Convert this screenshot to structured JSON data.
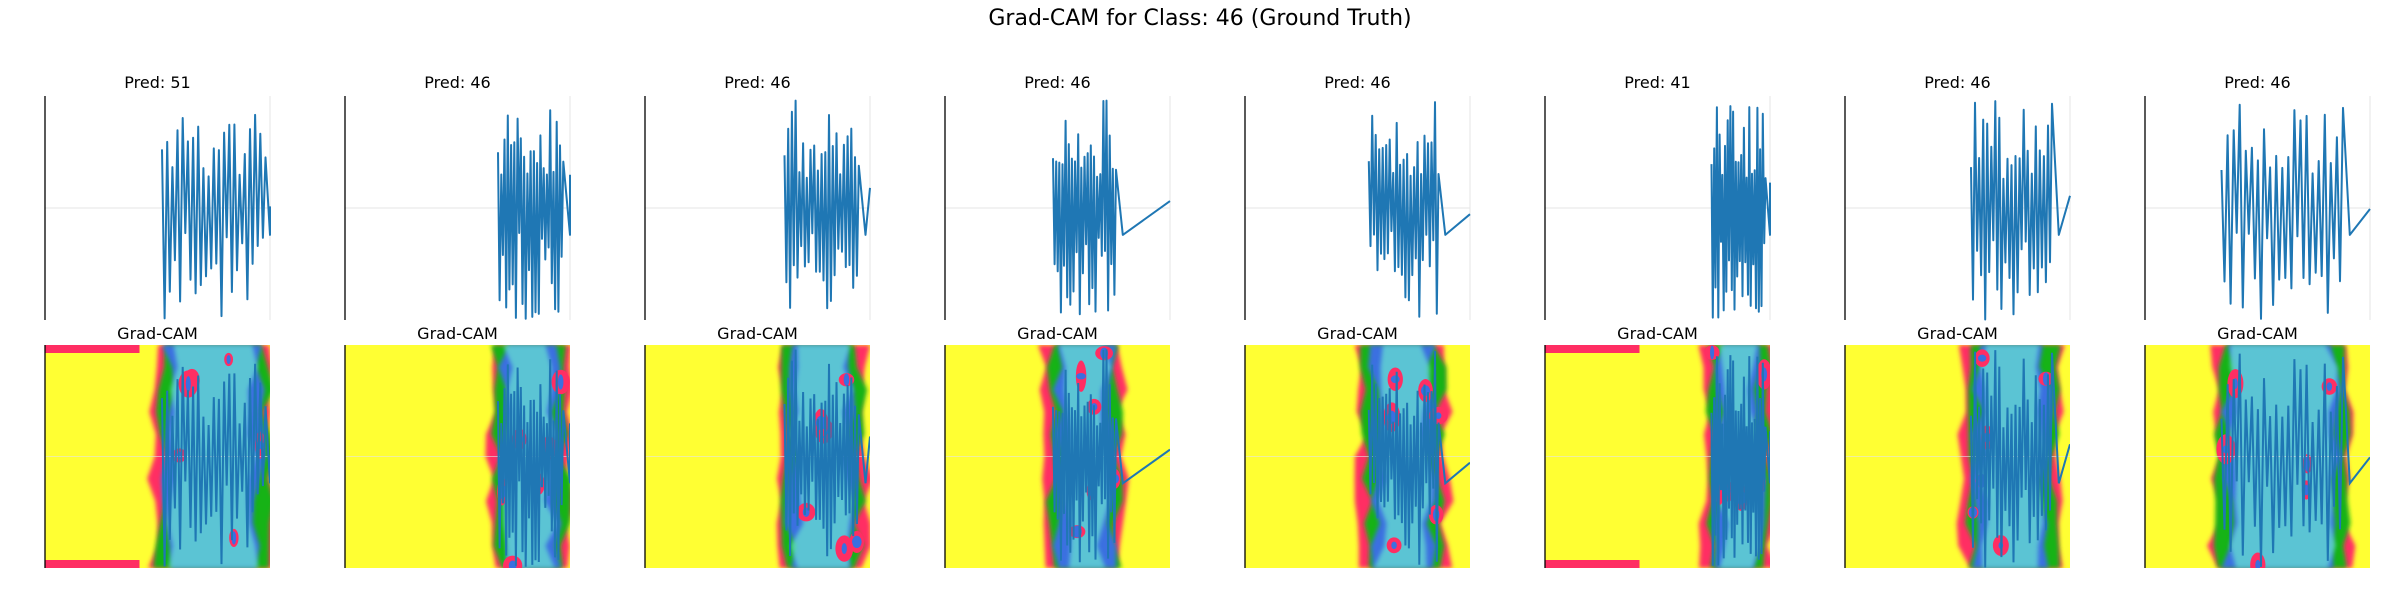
{
  "suptitle": "Grad-CAM for Class: 46 (Ground Truth)",
  "colors": {
    "line": "#1f77b4",
    "cam_low": "#ffff33",
    "cam_edge": "#ff2e63",
    "cam_mid": "#19b319",
    "cam_high": "#3a6fe0",
    "cam_core": "#66e0d0",
    "axis": "#000000",
    "grid": "#e6e6e6"
  },
  "heatmap_note_colormap": "prism",
  "chart_data": [
    {
      "type": "line",
      "title": "Pred: 51",
      "cam_title": "Grad-CAM",
      "grid": true,
      "axes_visible": false,
      "band": [
        0.52,
        0.98
      ]
    },
    {
      "type": "line",
      "title": "Pred: 46",
      "cam_title": "Grad-CAM",
      "grid": true,
      "axes_visible": false,
      "band": [
        0.68,
        0.97
      ]
    },
    {
      "type": "line",
      "title": "Pred: 46",
      "cam_title": "Grad-CAM",
      "grid": true,
      "axes_visible": false,
      "band": [
        0.62,
        0.95
      ]
    },
    {
      "type": "line",
      "title": "Pred: 46",
      "cam_title": "Grad-CAM",
      "grid": true,
      "axes_visible": false,
      "band": [
        0.48,
        0.76
      ]
    },
    {
      "type": "line",
      "title": "Pred: 46",
      "cam_title": "Grad-CAM",
      "grid": true,
      "axes_visible": false,
      "band": [
        0.55,
        0.86
      ]
    },
    {
      "type": "line",
      "title": "Pred: 41",
      "cam_title": "Grad-CAM",
      "grid": true,
      "axes_visible": false,
      "band": [
        0.74,
        0.98
      ]
    },
    {
      "type": "line",
      "title": "Pred: 46",
      "cam_title": "Grad-CAM",
      "grid": true,
      "axes_visible": false,
      "band": [
        0.56,
        0.92
      ]
    },
    {
      "type": "line",
      "title": "Pred: 46",
      "cam_title": "Grad-CAM",
      "grid": true,
      "axes_visible": false,
      "band": [
        0.34,
        0.88
      ]
    }
  ]
}
